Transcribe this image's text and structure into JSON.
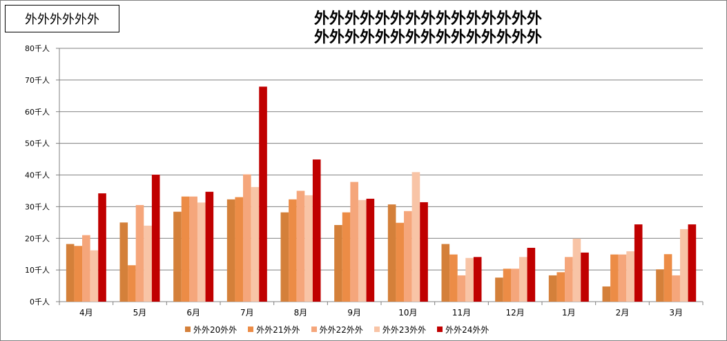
{
  "corner_label": "外外外外外外",
  "title_lines": [
    "外外外外外外外外外外外外外外外",
    "外外外外外外外外外外外外外外外"
  ],
  "chart_data": {
    "type": "bar",
    "categories": [
      "4月",
      "5月",
      "6月",
      "7月",
      "8月",
      "9月",
      "10月",
      "11月",
      "12月",
      "1月",
      "2月",
      "3月"
    ],
    "y_ticks": [
      "0千人",
      "10千人",
      "20千人",
      "30千人",
      "40千人",
      "50千人",
      "60千人",
      "70千人",
      "80千人"
    ],
    "ylim": [
      0,
      80
    ],
    "grid": true,
    "legend_position": "bottom",
    "series": [
      {
        "name": "外外20外外",
        "color": "#D4803A",
        "values": [
          18.2,
          25.0,
          28.4,
          32.3,
          28.2,
          24.2,
          30.7,
          18.2,
          7.6,
          8.3,
          4.8,
          10.2
        ]
      },
      {
        "name": "外外21外外",
        "color": "#EC8C46",
        "values": [
          17.6,
          11.5,
          33.2,
          33.0,
          32.3,
          28.2,
          24.9,
          14.9,
          10.4,
          9.3,
          14.9,
          15.0
        ]
      },
      {
        "name": "外外22外外",
        "color": "#F5A67B",
        "values": [
          21.0,
          30.5,
          33.2,
          40.2,
          35.0,
          37.8,
          28.6,
          8.3,
          10.4,
          14.1,
          14.9,
          8.3
        ]
      },
      {
        "name": "外外23外外",
        "color": "#F8C4A6",
        "values": [
          16.2,
          24.0,
          31.3,
          36.2,
          33.6,
          32.1,
          40.9,
          13.8,
          14.1,
          19.9,
          15.9,
          22.9
        ]
      },
      {
        "name": "外外24外外",
        "color": "#C00000",
        "values": [
          34.2,
          40.1,
          34.7,
          67.9,
          44.9,
          32.5,
          31.4,
          14.1,
          17.0,
          15.5,
          24.4,
          24.4
        ]
      }
    ]
  }
}
